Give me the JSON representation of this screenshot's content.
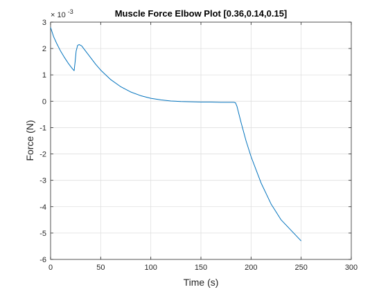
{
  "chart_data": {
    "type": "line",
    "title": "Muscle Force Elbow Plot [0.36,0.14,0.15]",
    "xlabel": "Time (s)",
    "ylabel": "Force (N)",
    "y_exponent_label": "× 10",
    "y_exponent": "-3",
    "xlim": [
      0,
      300
    ],
    "ylim": [
      -0.006,
      0.003
    ],
    "xticks": [
      0,
      50,
      100,
      150,
      200,
      250,
      300
    ],
    "xtick_labels": [
      "0",
      "50",
      "100",
      "150",
      "200",
      "250",
      "300"
    ],
    "yticks": [
      -0.006,
      -0.005,
      -0.004,
      -0.003,
      -0.002,
      -0.001,
      0,
      0.001,
      0.002,
      0.003
    ],
    "ytick_labels": [
      "-6",
      "-5",
      "-4",
      "-3",
      "-2",
      "-1",
      "0",
      "1",
      "2",
      "3"
    ],
    "grid": true,
    "colors": {
      "line": "#0072BD",
      "grid": "#dfdfdf",
      "axis": "#262626"
    },
    "series": [
      {
        "x": [
          0,
          3,
          6,
          10,
          14,
          18,
          22,
          23.5,
          24.5,
          25.5,
          27,
          28.5,
          31,
          35,
          40,
          45,
          50,
          60,
          70,
          80,
          90,
          100,
          110,
          120,
          130,
          140,
          150,
          160,
          170,
          180,
          183,
          184.5,
          186,
          190,
          195,
          200,
          205,
          210,
          215,
          220,
          225,
          230,
          235,
          240,
          245,
          250
        ],
        "y": [
          0.0028,
          0.00245,
          0.0022,
          0.0019,
          0.00165,
          0.00142,
          0.00122,
          0.00116,
          0.0015,
          0.0019,
          0.00212,
          0.00215,
          0.0021,
          0.0019,
          0.00165,
          0.0014,
          0.00118,
          0.00082,
          0.00055,
          0.00035,
          0.00021,
          0.00011,
          5e-05,
          1e-05,
          -1e-05,
          -2e-05,
          -3e-05,
          -3e-05,
          -4e-05,
          -4e-05,
          -4e-05,
          -6e-05,
          -0.0002,
          -0.0008,
          -0.0015,
          -0.0021,
          -0.0026,
          -0.0031,
          -0.0035,
          -0.0039,
          -0.0042,
          -0.0045,
          -0.0047,
          -0.0049,
          -0.0051,
          -0.0053
        ]
      }
    ]
  }
}
